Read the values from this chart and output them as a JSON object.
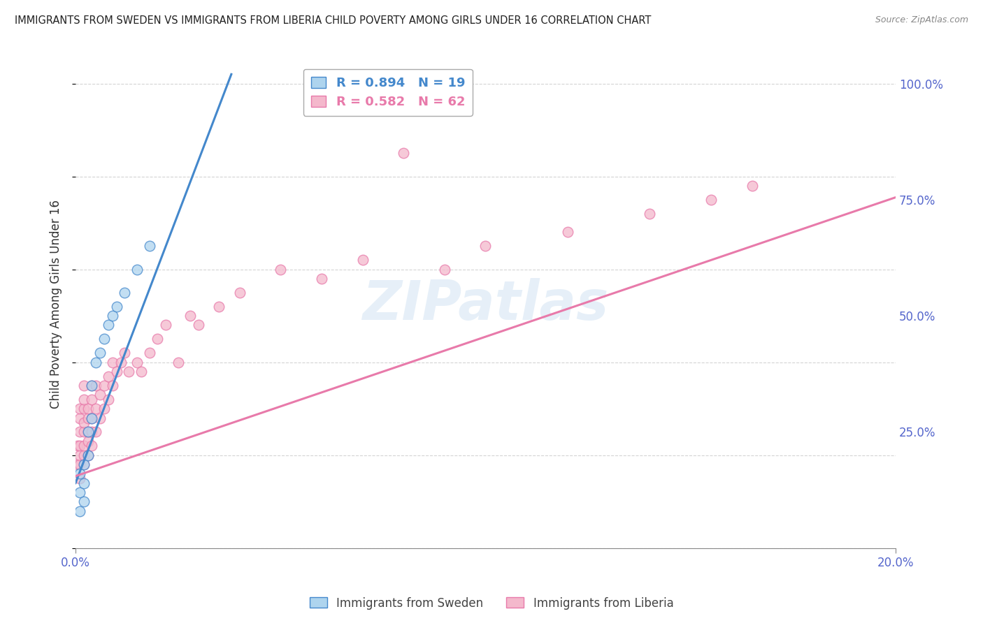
{
  "title": "IMMIGRANTS FROM SWEDEN VS IMMIGRANTS FROM LIBERIA CHILD POVERTY AMONG GIRLS UNDER 16 CORRELATION CHART",
  "source": "Source: ZipAtlas.com",
  "ylabel": "Child Poverty Among Girls Under 16",
  "xlim": [
    0.0,
    0.2
  ],
  "ylim": [
    0.0,
    1.05
  ],
  "sweden_R": 0.894,
  "sweden_N": 19,
  "liberia_R": 0.582,
  "liberia_N": 62,
  "sweden_color": "#aed4ee",
  "liberia_color": "#f4b8cc",
  "sweden_line_color": "#4488cc",
  "liberia_line_color": "#e87aaa",
  "watermark": "ZIPatlas",
  "background_color": "#ffffff",
  "grid_color": "#d0d0d0",
  "title_color": "#222222",
  "right_axis_color": "#5566cc",
  "bottom_axis_color": "#5566cc",
  "sweden_scatter_x": [
    0.001,
    0.001,
    0.001,
    0.002,
    0.002,
    0.002,
    0.003,
    0.003,
    0.004,
    0.004,
    0.005,
    0.006,
    0.007,
    0.008,
    0.009,
    0.01,
    0.012,
    0.015,
    0.018
  ],
  "sweden_scatter_y": [
    0.08,
    0.12,
    0.16,
    0.1,
    0.14,
    0.18,
    0.2,
    0.25,
    0.28,
    0.35,
    0.4,
    0.42,
    0.45,
    0.48,
    0.5,
    0.52,
    0.55,
    0.6,
    0.65
  ],
  "liberia_scatter_x": [
    0.0005,
    0.0005,
    0.001,
    0.001,
    0.001,
    0.001,
    0.001,
    0.001,
    0.001,
    0.002,
    0.002,
    0.002,
    0.002,
    0.002,
    0.002,
    0.002,
    0.002,
    0.003,
    0.003,
    0.003,
    0.003,
    0.003,
    0.004,
    0.004,
    0.004,
    0.004,
    0.004,
    0.005,
    0.005,
    0.005,
    0.006,
    0.006,
    0.007,
    0.007,
    0.008,
    0.008,
    0.009,
    0.009,
    0.01,
    0.011,
    0.012,
    0.013,
    0.015,
    0.016,
    0.018,
    0.02,
    0.022,
    0.025,
    0.028,
    0.03,
    0.035,
    0.04,
    0.05,
    0.06,
    0.07,
    0.08,
    0.09,
    0.1,
    0.12,
    0.14,
    0.155,
    0.165
  ],
  "liberia_scatter_y": [
    0.18,
    0.22,
    0.15,
    0.18,
    0.2,
    0.22,
    0.25,
    0.28,
    0.3,
    0.18,
    0.2,
    0.22,
    0.25,
    0.27,
    0.3,
    0.32,
    0.35,
    0.2,
    0.23,
    0.25,
    0.28,
    0.3,
    0.22,
    0.25,
    0.28,
    0.32,
    0.35,
    0.25,
    0.3,
    0.35,
    0.28,
    0.33,
    0.3,
    0.35,
    0.32,
    0.37,
    0.35,
    0.4,
    0.38,
    0.4,
    0.42,
    0.38,
    0.4,
    0.38,
    0.42,
    0.45,
    0.48,
    0.4,
    0.5,
    0.48,
    0.52,
    0.55,
    0.6,
    0.58,
    0.62,
    0.85,
    0.6,
    0.65,
    0.68,
    0.72,
    0.75,
    0.78
  ],
  "sweden_line_x": [
    0.0,
    0.038
  ],
  "sweden_line_y": [
    0.14,
    1.02
  ],
  "liberia_line_x": [
    0.0,
    0.2
  ],
  "liberia_line_y": [
    0.155,
    0.755
  ],
  "legend_items": [
    "Immigrants from Sweden",
    "Immigrants from Liberia"
  ]
}
